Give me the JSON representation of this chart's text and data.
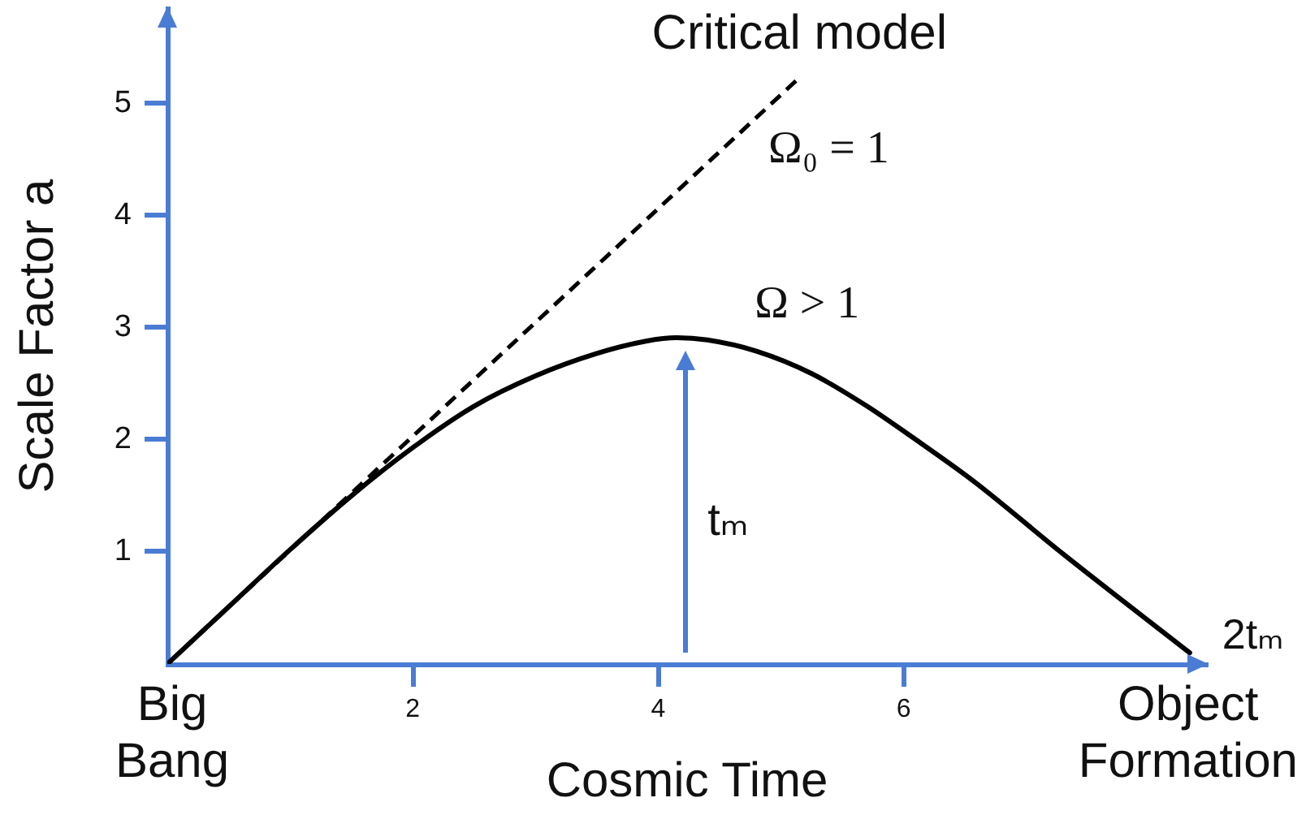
{
  "chart_data": {
    "type": "line",
    "xlabel": "Cosmic Time",
    "ylabel": "Scale Factor a",
    "xlim": [
      0,
      8.47
    ],
    "ylim": [
      0,
      5.85
    ],
    "xticks": [
      2,
      4,
      6
    ],
    "yticks": [
      1,
      2,
      3,
      4,
      5
    ],
    "grid": false,
    "legend": false,
    "marker": "none",
    "series": [
      {
        "color": "#000000",
        "line_style": "solid",
        "x": [
          0,
          0.5,
          1.0,
          1.5,
          2.0,
          2.5,
          3.0,
          3.5,
          3.9,
          4.15,
          4.4,
          4.8,
          5.25,
          5.7,
          6.1,
          6.57,
          7.3,
          8.33
        ],
        "values": [
          0,
          0.51,
          1.02,
          1.5,
          1.93,
          2.3,
          2.57,
          2.77,
          2.88,
          2.91,
          2.89,
          2.79,
          2.59,
          2.3,
          2.0,
          1.63,
          0.98,
          0.1
        ]
      },
      {
        "color": "#000000",
        "line_style": "dashed",
        "x": [
          0,
          5.15
        ],
        "values": [
          0,
          5.23
        ]
      }
    ],
    "annotations": [
      {
        "text": "Critical model",
        "x": 5.15,
        "y": 5.23
      },
      {
        "text": "Ω₀ = 1",
        "x": 4.5,
        "y": 4.57
      },
      {
        "text": "Ω > 1",
        "x": 4.15,
        "y": 2.91
      },
      "tₘ",
      {
        "text": "2tₘ",
        "x": 8.33,
        "y": 0.1
      },
      {
        "text": "Big Bang",
        "x": 0,
        "y": 0
      },
      {
        "text": "Object Formation",
        "x": 8.33,
        "y": 0.1
      }
    ]
  }
}
